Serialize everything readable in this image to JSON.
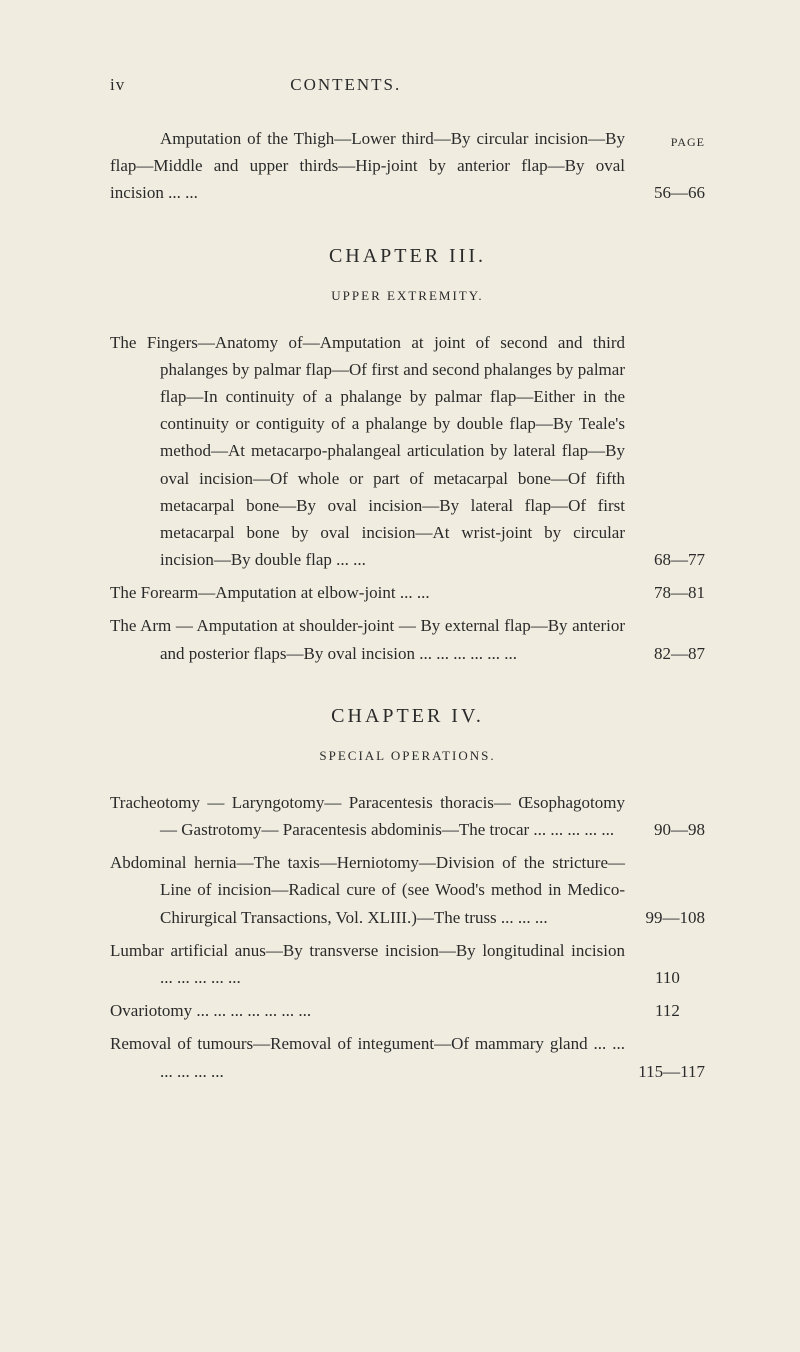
{
  "header": {
    "page_num": "iv",
    "title": "CONTENTS.",
    "page_label": "PAGE"
  },
  "entries": [
    {
      "text": "Amputation of the Thigh—Lower third—By circular incision—By flap—Middle and upper thirds—Hip-joint by anterior flap—By oval incision   ...   ...",
      "range": "56—66"
    }
  ],
  "chapter3": {
    "title": "CHAPTER III.",
    "subtitle": "UPPER EXTREMITY."
  },
  "chapter3_entries": [
    {
      "text": "The Fingers—Anatomy of—Amputation at joint of second and third phalanges by palmar flap—Of first and second phalanges by palmar flap—In continuity of a phalange by palmar flap—Either in the continuity or contiguity of a phalange by double flap—By Teale's method—At metacarpo-phalangeal articulation by lateral flap—By oval incision—Of whole or part of metacarpal bone—Of fifth metacarpal bone—By oval incision—By lateral flap—Of first metacarpal bone by oval incision—At wrist-joint by circular incision—By double flap ...   ...",
      "range": "68—77"
    },
    {
      "text": "The Forearm—Amputation at elbow-joint        ...     ...",
      "range": "78—81"
    },
    {
      "text": "The Arm — Amputation at shoulder-joint — By external flap—By anterior and posterior flaps—By oval incision     ...     ...     ...     ...     ...     ...",
      "range": "82—87"
    }
  ],
  "chapter4": {
    "title": "CHAPTER IV.",
    "subtitle": "SPECIAL OPERATIONS."
  },
  "chapter4_entries": [
    {
      "text": "Tracheotomy — Laryngotomy— Paracentesis thoracis— Œsophagotomy — Gastrotomy— Paracentesis abdominis—The trocar       ...     ...     ...     ...     ...",
      "range": "90—98"
    },
    {
      "text": "Abdominal hernia—The taxis—Herniotomy—Division of the stricture—Line of incision—Radical cure of (see Wood's method in Medico-Chirurgical Transactions, Vol. XLIII.)—The truss       ...     ...     ...",
      "range": "99—108"
    },
    {
      "text": "Lumbar artificial anus—By transverse incision—By longitudinal incision ...       ...     ...     ...     ...",
      "range": "110"
    },
    {
      "text": "Ovariotomy ...     ...     ...     ...     ...     ...     ...",
      "range": "112"
    },
    {
      "text": "Removal of tumours—Removal of integument—Of mammary gland       ...     ...     ...     ...     ...     ...",
      "range": "115—117"
    }
  ]
}
